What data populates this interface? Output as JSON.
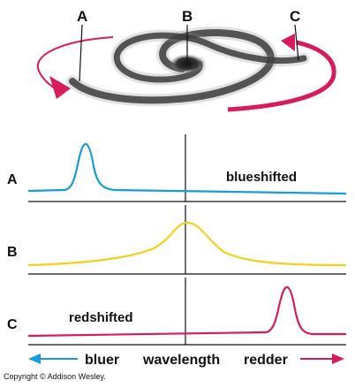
{
  "galaxy": {
    "labels": [
      "A",
      "B",
      "C"
    ]
  },
  "spectra": [
    {
      "row_label": "A",
      "annotation": "blueshifted",
      "color": "#1a9ad6"
    },
    {
      "row_label": "B",
      "annotation": "",
      "color": "#f2d01c"
    },
    {
      "row_label": "C",
      "annotation": "redshifted",
      "color": "#d81b5a"
    }
  ],
  "axis": {
    "left_label": "bluer",
    "center_label": "wavelength",
    "right_label": "redder",
    "left_arrow_color": "#1a9ad6",
    "right_arrow_color": "#d81b5a"
  },
  "rotation_arrow_color": "#d81b5a",
  "copyright": "Copyright © Addison Wesley."
}
